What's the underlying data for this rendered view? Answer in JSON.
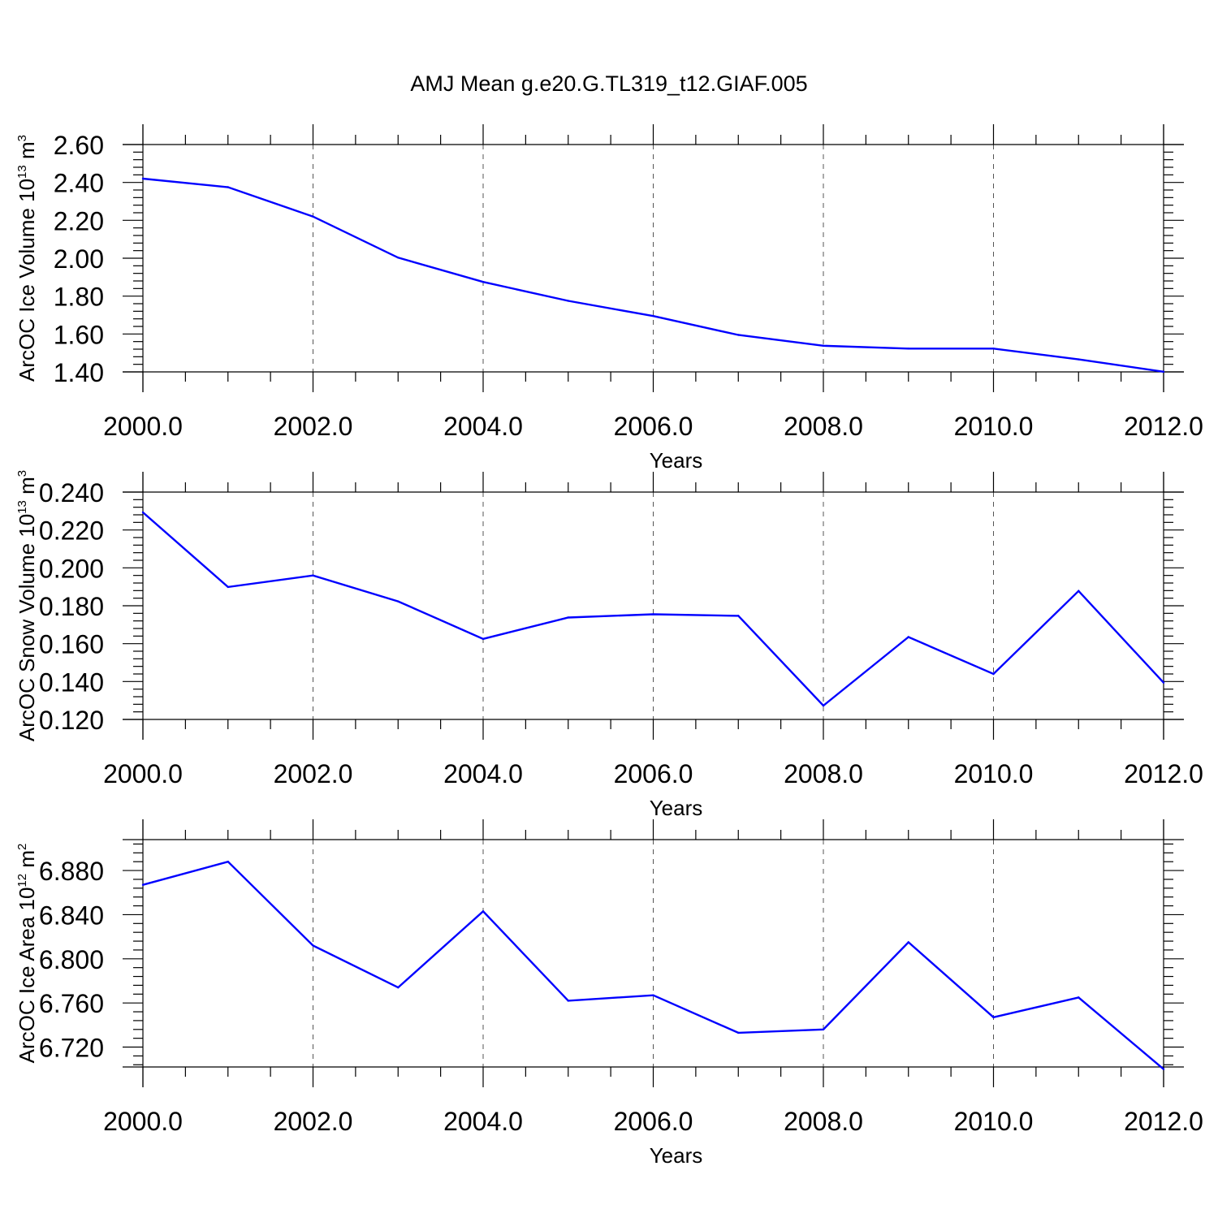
{
  "title": "AMJ Mean g.e20.G.TL319_t12.GIAF.005",
  "colors": {
    "line": "#0000ff",
    "axis": "#000000",
    "grid": "#555555",
    "background": "#ffffff"
  },
  "chart_data": [
    {
      "type": "line",
      "id": "ice-volume",
      "title": "AMJ Mean g.e20.G.TL319_t12.GIAF.005",
      "ylabel": {
        "main": "ArcOC Ice Volume 10",
        "exp": "13",
        "unit": " m",
        "unit_exp": "3"
      },
      "xlabel": "Years",
      "x": [
        2000,
        2001,
        2002,
        2003,
        2004,
        2005,
        2006,
        2007,
        2008,
        2009,
        2010,
        2011,
        2012
      ],
      "values": [
        2.42,
        2.375,
        2.22,
        2.003,
        1.875,
        1.775,
        1.695,
        1.595,
        1.538,
        1.523,
        1.523,
        1.466,
        1.401
      ],
      "xlim": [
        2000,
        2012
      ],
      "ylim": [
        1.4,
        2.6
      ],
      "xticks": [
        2000,
        2002,
        2004,
        2006,
        2008,
        2010,
        2012
      ],
      "xtick_labels": [
        "2000.0",
        "2002.0",
        "2004.0",
        "2006.0",
        "2008.0",
        "2010.0",
        "2012.0"
      ],
      "yticks": [
        1.4,
        1.6,
        1.8,
        2.0,
        2.2,
        2.4,
        2.6
      ],
      "ytick_labels": [
        "1.40",
        "1.60",
        "1.80",
        "2.00",
        "2.20",
        "2.40",
        "2.60"
      ],
      "grid": "dashed vertical at major x ticks"
    },
    {
      "type": "line",
      "id": "snow-volume",
      "ylabel": {
        "main": "ArcOC Snow Volume 10",
        "exp": "13",
        "unit": " m",
        "unit_exp": "3"
      },
      "xlabel": "Years",
      "x": [
        2000,
        2001,
        2002,
        2003,
        2004,
        2005,
        2006,
        2007,
        2008,
        2009,
        2010,
        2011,
        2012
      ],
      "values": [
        0.2293,
        0.1899,
        0.196,
        0.1823,
        0.1625,
        0.1738,
        0.1755,
        0.1747,
        0.1273,
        0.1635,
        0.144,
        0.1878,
        0.1394
      ],
      "xlim": [
        2000,
        2012
      ],
      "ylim": [
        0.12,
        0.24
      ],
      "xticks": [
        2000,
        2002,
        2004,
        2006,
        2008,
        2010,
        2012
      ],
      "xtick_labels": [
        "2000.0",
        "2002.0",
        "2004.0",
        "2006.0",
        "2008.0",
        "2010.0",
        "2012.0"
      ],
      "yticks": [
        0.12,
        0.14,
        0.16,
        0.18,
        0.2,
        0.22,
        0.24
      ],
      "ytick_labels": [
        "0.120",
        "0.140",
        "0.160",
        "0.180",
        "0.200",
        "0.220",
        "0.240"
      ],
      "grid": "dashed vertical at major x ticks"
    },
    {
      "type": "line",
      "id": "ice-area",
      "ylabel": {
        "main": "ArcOC Ice Area 10",
        "exp": "12",
        "unit": " m",
        "unit_exp": "2"
      },
      "xlabel": "Years",
      "x": [
        2000,
        2001,
        2002,
        2003,
        2004,
        2005,
        2006,
        2007,
        2008,
        2009,
        2010,
        2011,
        2012
      ],
      "values": [
        6.867,
        6.888,
        6.812,
        6.774,
        6.843,
        6.762,
        6.767,
        6.733,
        6.736,
        6.815,
        6.747,
        6.765,
        6.7
      ],
      "xlim": [
        2000,
        2012
      ],
      "ylim": [
        6.702,
        6.908
      ],
      "xticks": [
        2000,
        2002,
        2004,
        2006,
        2008,
        2010,
        2012
      ],
      "xtick_labels": [
        "2000.0",
        "2002.0",
        "2004.0",
        "2006.0",
        "2008.0",
        "2010.0",
        "2012.0"
      ],
      "yticks": [
        6.72,
        6.76,
        6.8,
        6.84,
        6.88
      ],
      "ytick_labels": [
        "6.720",
        "6.760",
        "6.800",
        "6.840",
        "6.880"
      ],
      "grid": "dashed vertical at major x ticks"
    }
  ]
}
